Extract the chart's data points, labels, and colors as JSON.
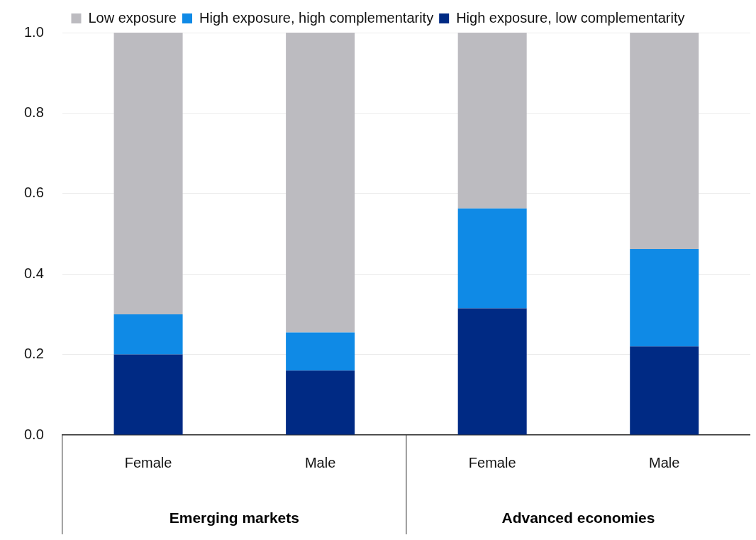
{
  "chart_data": {
    "type": "bar",
    "stacked": true,
    "categories": [
      "Female",
      "Male",
      "Female",
      "Male"
    ],
    "series": [
      {
        "name": "High exposure, low complementarity",
        "color": "#002a84",
        "values": [
          0.2,
          0.16,
          0.315,
          0.22
        ]
      },
      {
        "name": "High exposure, high complementarity",
        "color": "#0f8ae6",
        "values": [
          0.1,
          0.095,
          0.248,
          0.242
        ]
      },
      {
        "name": "Low exposure",
        "color": "#bcbbc0",
        "values": [
          0.7,
          0.745,
          0.437,
          0.538
        ]
      }
    ],
    "ylim": [
      0,
      1
    ],
    "yticks": [
      {
        "value": 0,
        "label": "0.0"
      },
      {
        "value": 0.2,
        "label": "0.2"
      },
      {
        "value": 0.4,
        "label": "0.4"
      },
      {
        "value": 0.6,
        "label": "0.6"
      },
      {
        "value": 0.8,
        "label": "0.8"
      },
      {
        "value": 1,
        "label": "1.0"
      }
    ],
    "grid": "y",
    "legend": "top",
    "annotations": [
      "Emerging markets",
      "Advanced economies"
    ]
  }
}
